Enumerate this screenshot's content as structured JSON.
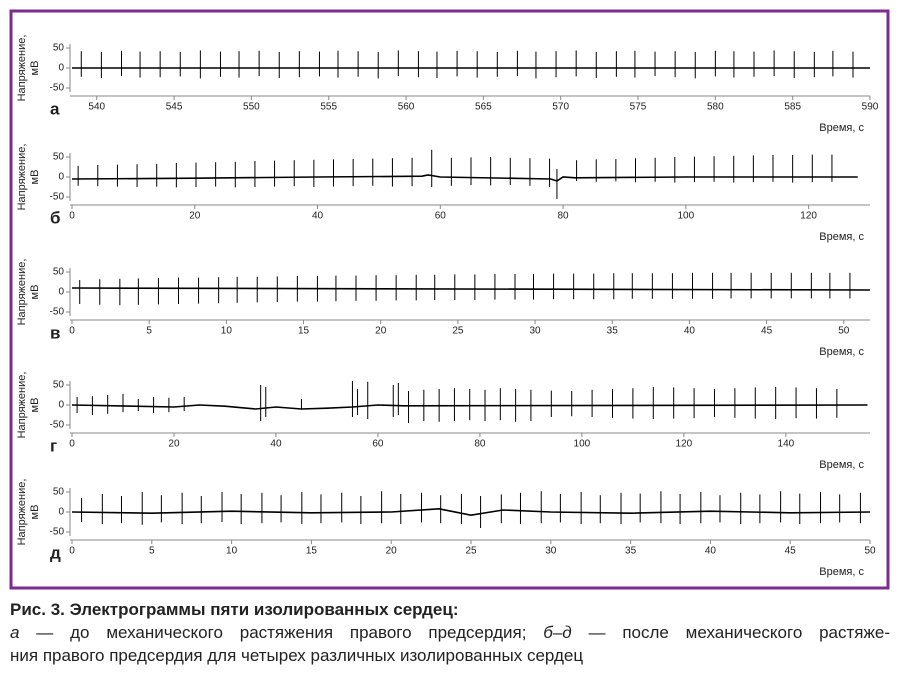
{
  "charts": [
    {
      "type": "spikes",
      "label": "а",
      "xlabel": "Время, с",
      "ylabel": [
        "Напряжение,",
        "мВ"
      ],
      "color": "#000000",
      "xlim": [
        538.4,
        590
      ],
      "ylim": [
        -60,
        60
      ],
      "xticks": [
        540,
        545,
        550,
        555,
        560,
        565,
        570,
        575,
        580,
        585,
        590
      ],
      "yticks": [
        -50,
        0,
        50
      ],
      "spikes": {
        "x": [
          539.0,
          540.3,
          541.6,
          542.8,
          544.1,
          545.4,
          546.7,
          548.0,
          549.2,
          550.5,
          551.8,
          553.1,
          554.4,
          555.6,
          556.9,
          558.2,
          559.5,
          560.8,
          562.0,
          563.3,
          564.6,
          565.9,
          567.2,
          568.4,
          569.7,
          571.0,
          572.3,
          573.6,
          574.8,
          576.1,
          577.4,
          578.7,
          580.0,
          581.2,
          582.5,
          583.8,
          585.1,
          586.4,
          587.6,
          588.9
        ],
        "high": [
          42,
          40,
          43,
          41,
          42,
          40,
          44,
          41,
          42,
          43,
          40,
          42,
          41,
          43,
          42,
          40,
          44,
          42,
          41,
          43,
          42,
          40,
          43,
          41,
          42,
          44,
          40,
          42,
          43,
          41,
          42,
          40,
          43,
          42,
          41,
          44,
          42,
          40,
          43,
          41
        ],
        "low": [
          -22,
          -25,
          -20,
          -24,
          -23,
          -21,
          -26,
          -22,
          -24,
          -20,
          -25,
          -23,
          -21,
          -24,
          -22,
          -26,
          -20,
          -23,
          -25,
          -21,
          -24,
          -22,
          -20,
          -26,
          -23,
          -21,
          -25,
          -22,
          -24,
          -20,
          -23,
          -26,
          -21,
          -24,
          -22,
          -20,
          -25,
          -23,
          -21,
          -24
        ]
      },
      "baseline": {
        "x": [
          538.4,
          590
        ],
        "values": [
          0,
          0
        ]
      }
    },
    {
      "type": "spikes",
      "label": "б",
      "xlabel": "Время, с",
      "ylabel": [
        "Напряжение,",
        "мВ"
      ],
      "color": "#000000",
      "xlim": [
        0,
        130
      ],
      "ylim": [
        -60,
        60
      ],
      "xticks": [
        0,
        20,
        40,
        60,
        80,
        100,
        120
      ],
      "yticks": [
        -50,
        0,
        50
      ],
      "spikes": {
        "x": [
          1.0,
          4.2,
          7.4,
          10.6,
          13.8,
          17.0,
          20.2,
          23.4,
          26.6,
          29.8,
          33.0,
          36.2,
          39.4,
          42.6,
          45.8,
          49.0,
          52.2,
          55.4,
          58.6,
          61.8,
          65.0,
          68.2,
          71.4,
          74.6,
          77.8,
          79.0,
          82.2,
          85.4,
          88.6,
          91.8,
          95.0,
          98.2,
          101.4,
          104.6,
          107.8,
          111.0,
          114.2,
          117.4,
          120.6,
          123.8
        ],
        "high": [
          28,
          30,
          31,
          32,
          33,
          35,
          36,
          37,
          38,
          40,
          41,
          42,
          43,
          44,
          45,
          46,
          47,
          48,
          68,
          48,
          49,
          50,
          48,
          47,
          46,
          20,
          42,
          44,
          45,
          47,
          48,
          50,
          51,
          52,
          53,
          54,
          55,
          55,
          56,
          56
        ],
        "low": [
          -22,
          -23,
          -24,
          -25,
          -24,
          -26,
          -25,
          -24,
          -26,
          -25,
          -24,
          -23,
          -25,
          -24,
          -23,
          -22,
          -24,
          -23,
          -25,
          -22,
          -20,
          -21,
          -20,
          -22,
          -25,
          -55,
          -10,
          -12,
          -11,
          -13,
          -12,
          -14,
          -13,
          -12,
          -14,
          -13,
          -12,
          -14,
          -13,
          -12
        ]
      },
      "baseline": {
        "x": [
          0,
          20,
          40,
          57,
          58,
          60,
          78,
          79,
          80,
          82,
          100,
          128
        ],
        "values": [
          -5,
          -3,
          0,
          2,
          5,
          0,
          -5,
          -10,
          0,
          -2,
          0,
          0
        ]
      }
    },
    {
      "type": "spikes",
      "label": "в",
      "xlabel": "Время, с",
      "ylabel": [
        "Напряжение,",
        "мВ"
      ],
      "color": "#000000",
      "xlim": [
        0,
        51.7
      ],
      "ylim": [
        -60,
        60
      ],
      "xticks": [
        0,
        5,
        10,
        15,
        20,
        25,
        30,
        35,
        40,
        45,
        50
      ],
      "yticks": [
        -50,
        0,
        50
      ],
      "spikes": {
        "x": [
          0.5,
          1.8,
          3.1,
          4.3,
          5.6,
          6.9,
          8.2,
          9.5,
          10.7,
          12.0,
          13.3,
          14.6,
          15.9,
          17.1,
          18.4,
          19.7,
          21.0,
          22.3,
          23.5,
          24.8,
          26.1,
          27.4,
          28.7,
          29.9,
          31.2,
          32.5,
          33.8,
          35.1,
          36.3,
          37.6,
          38.9,
          40.2,
          41.5,
          42.7,
          44.0,
          45.3,
          46.6,
          47.9,
          49.1,
          50.4
        ],
        "high": [
          30,
          32,
          33,
          34,
          35,
          36,
          36,
          37,
          38,
          38,
          39,
          40,
          40,
          41,
          41,
          42,
          42,
          43,
          43,
          44,
          44,
          45,
          45,
          45,
          46,
          46,
          46,
          47,
          47,
          47,
          47,
          48,
          48,
          48,
          48,
          48,
          48,
          48,
          48,
          48
        ],
        "low": [
          -30,
          -32,
          -33,
          -32,
          -31,
          -30,
          -29,
          -28,
          -27,
          -26,
          -25,
          -24,
          -24,
          -23,
          -22,
          -22,
          -21,
          -21,
          -20,
          -20,
          -20,
          -19,
          -19,
          -19,
          -18,
          -18,
          -18,
          -18,
          -17,
          -17,
          -17,
          -17,
          -17,
          -16,
          -16,
          -16,
          -16,
          -16,
          -16,
          -16
        ]
      },
      "baseline": {
        "x": [
          0,
          20,
          51.7
        ],
        "values": [
          10,
          8,
          5
        ]
      }
    },
    {
      "type": "spikes",
      "label": "г",
      "xlabel": "Время, с",
      "ylabel": [
        "Напряжение,",
        "мВ"
      ],
      "color": "#000000",
      "xlim": [
        0,
        156.5
      ],
      "ylim": [
        -60,
        60
      ],
      "xticks": [
        0,
        20,
        40,
        60,
        80,
        100,
        120,
        140
      ],
      "yticks": [
        -50,
        0,
        50
      ],
      "spikes": {
        "x": [
          1,
          4,
          7,
          10,
          13,
          16,
          19,
          22,
          37,
          38,
          45,
          55,
          56,
          58,
          63,
          64,
          66,
          69,
          72,
          75,
          78,
          81,
          84,
          87,
          90,
          94,
          98,
          102,
          106,
          110,
          114,
          118,
          122,
          126,
          130,
          134,
          138,
          142,
          146,
          150
        ],
        "high": [
          20,
          22,
          25,
          28,
          15,
          20,
          18,
          20,
          50,
          45,
          15,
          60,
          40,
          58,
          50,
          55,
          35,
          38,
          40,
          42,
          40,
          38,
          42,
          40,
          38,
          36,
          35,
          38,
          40,
          42,
          45,
          44,
          42,
          40,
          42,
          44,
          45,
          44,
          42,
          40
        ],
        "low": [
          -20,
          -25,
          -22,
          -18,
          -15,
          -20,
          -18,
          -15,
          -40,
          -30,
          -10,
          -30,
          -25,
          -35,
          -30,
          -25,
          -45,
          -40,
          -42,
          -40,
          -38,
          -40,
          -38,
          -42,
          -40,
          -30,
          -28,
          -30,
          -32,
          -34,
          -35,
          -34,
          -33,
          -30,
          -32,
          -34,
          -35,
          -33,
          -34,
          -32
        ]
      },
      "baseline": {
        "x": [
          0,
          20,
          25,
          30,
          36,
          40,
          45,
          50,
          55,
          60,
          65,
          156
        ],
        "values": [
          0,
          -5,
          0,
          -3,
          -10,
          -5,
          -10,
          -8,
          -5,
          0,
          -2,
          0
        ]
      }
    },
    {
      "type": "spikes",
      "label": "д",
      "xlabel": "Время, с",
      "ylabel": [
        "Напряжение,",
        "мВ"
      ],
      "color": "#000000",
      "xlim": [
        0,
        50
      ],
      "ylim": [
        -60,
        60
      ],
      "xticks": [
        0,
        5,
        10,
        15,
        20,
        25,
        30,
        35,
        40,
        45,
        50
      ],
      "yticks": [
        -50,
        0,
        50
      ],
      "spikes": {
        "x": [
          0.6,
          1.9,
          3.1,
          4.4,
          5.6,
          6.9,
          8.1,
          9.4,
          10.6,
          11.9,
          13.1,
          14.4,
          15.6,
          16.9,
          18.1,
          19.4,
          20.6,
          21.9,
          23.1,
          24.4,
          25.6,
          26.9,
          28.1,
          29.4,
          30.6,
          31.9,
          33.1,
          34.4,
          35.6,
          36.9,
          38.1,
          39.4,
          40.6,
          41.9,
          43.1,
          44.4,
          45.6,
          46.9,
          48.1,
          49.4
        ],
        "high": [
          35,
          45,
          40,
          50,
          42,
          48,
          40,
          50,
          45,
          48,
          42,
          50,
          44,
          48,
          40,
          52,
          45,
          48,
          42,
          45,
          40,
          44,
          48,
          52,
          45,
          50,
          42,
          48,
          46,
          52,
          45,
          50,
          42,
          48,
          44,
          52,
          46,
          50,
          44,
          48
        ],
        "low": [
          -25,
          -30,
          -28,
          -32,
          -26,
          -30,
          -28,
          -25,
          -30,
          -28,
          -26,
          -30,
          -28,
          -26,
          -30,
          -28,
          -30,
          -26,
          -28,
          -30,
          -40,
          -28,
          -30,
          -28,
          -26,
          -30,
          -28,
          -30,
          -26,
          -28,
          -30,
          -28,
          -26,
          -30,
          -28,
          -26,
          -30,
          -28,
          -26,
          -28
        ]
      },
      "baseline": {
        "x": [
          0,
          5,
          10,
          15,
          20,
          23,
          25,
          27,
          30,
          35,
          40,
          45,
          50
        ],
        "values": [
          0,
          -3,
          2,
          -2,
          0,
          8,
          -8,
          5,
          0,
          -3,
          2,
          -2,
          0
        ]
      }
    }
  ],
  "caption": {
    "title": "Рис. 3. Электрограммы пяти изолированных сердец:",
    "line1": [
      "а",
      " — до механического растяжения правого предсердия; ",
      "б–д",
      " — после механического растяже-"
    ],
    "line2": "ния правого предсердия для четырех различных изолированных сердец"
  }
}
